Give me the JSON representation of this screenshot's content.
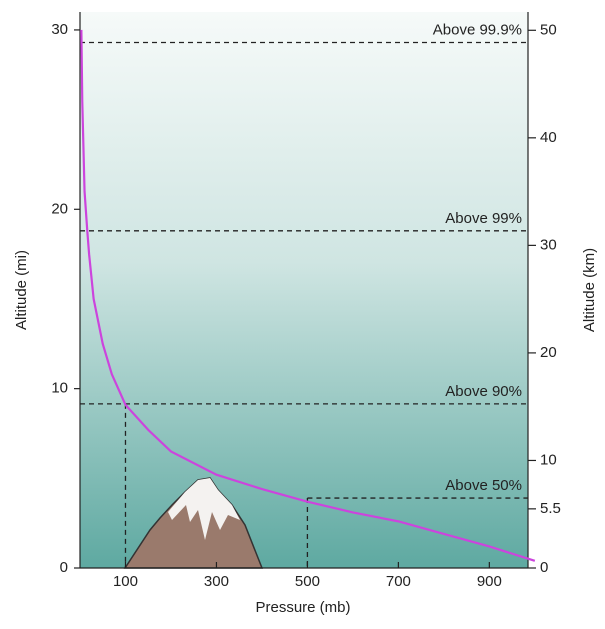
{
  "chart_data": {
    "type": "line",
    "xlabel": "Pressure (mb)",
    "ylabel": "Altitude (mi)",
    "y2label": "Altitude (km)",
    "xlim": [
      0,
      985
    ],
    "xticks": [
      100,
      300,
      500,
      700,
      900
    ],
    "ylim": [
      0,
      31
    ],
    "yticks": [
      0,
      10,
      20,
      30
    ],
    "y2lim": [
      0,
      51.7
    ],
    "y2ticks": [
      0,
      5.5,
      10,
      20,
      30,
      40,
      50
    ],
    "series": [
      {
        "color": "#cc44dd",
        "x": [
          3,
          5,
          10,
          16,
          20,
          30,
          50,
          70,
          100,
          150,
          200,
          300,
          400,
          500,
          600,
          700,
          800,
          900,
          1000
        ],
        "values": [
          30,
          26,
          21,
          18.8,
          17.5,
          15,
          12.5,
          10.8,
          9.1,
          7.7,
          6.5,
          5.2,
          4.4,
          3.7,
          3.1,
          2.6,
          1.9,
          1.2,
          0.4
        ]
      }
    ],
    "annotations": [
      {
        "text": "Above 99.9%",
        "y": 29.3
      },
      {
        "text": "Above 99%",
        "y": 18.8
      },
      {
        "text": "Above 90%",
        "y": 9.15,
        "x": 100
      },
      {
        "text": "Above 50%",
        "y": 3.9,
        "x": 500
      }
    ]
  }
}
